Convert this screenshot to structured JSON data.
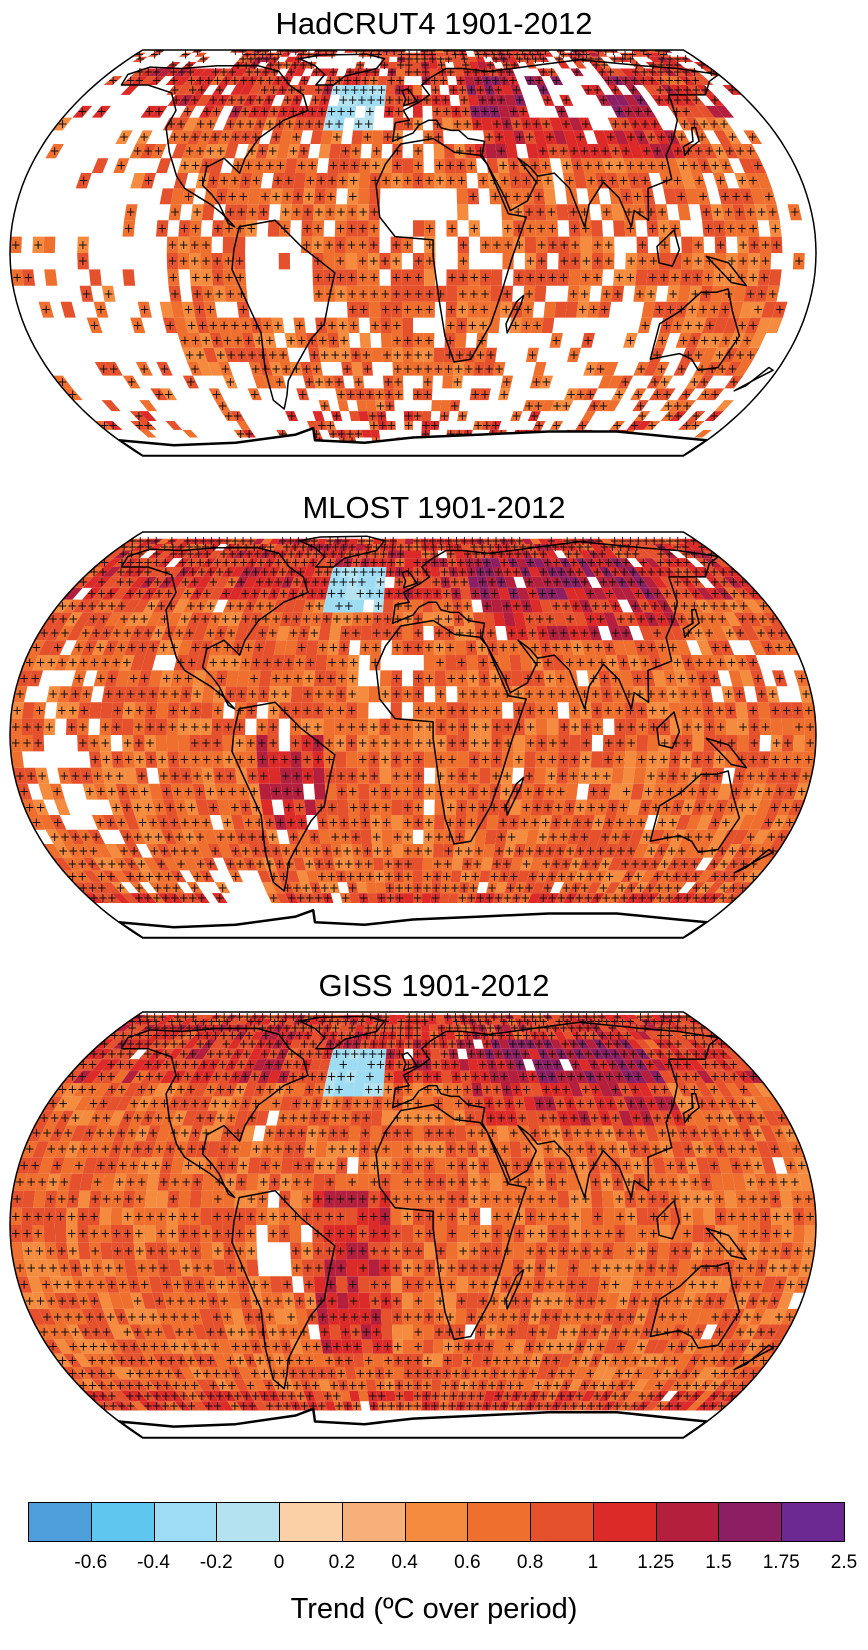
{
  "panels": [
    {
      "title": "HadCRUT4 1901-2012",
      "coverage": "sparse"
    },
    {
      "title": "MLOST 1901-2012",
      "coverage": "medium"
    },
    {
      "title": "GISS 1901-2012",
      "coverage": "full"
    }
  ],
  "colorbar": {
    "label": "Trend (ºC over period)",
    "ticks": [
      "-0.6",
      "-0.4",
      "-0.2",
      "0",
      "0.2",
      "0.4",
      "0.6",
      "0.8",
      "1",
      "1.25",
      "1.5",
      "1.75",
      "2.5"
    ],
    "colors": [
      "#4d9edb",
      "#5ec6ef",
      "#9ddcf2",
      "#b5e2ef",
      "#fbd0a6",
      "#f8b07a",
      "#f48b3f",
      "#ef6f2f",
      "#e5512d",
      "#dc2a28",
      "#b51f3e",
      "#8c1f63",
      "#6b2991"
    ]
  },
  "legend_colors": {
    "no_data": "#ffffff",
    "significance_marker": "+"
  }
}
